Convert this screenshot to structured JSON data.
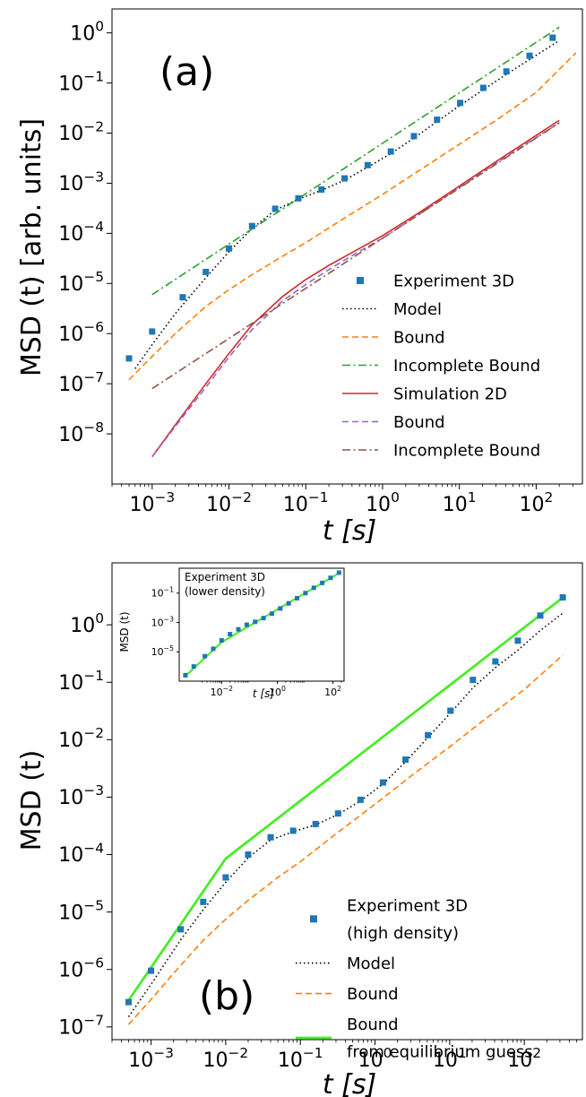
{
  "chart_data": [
    {
      "type": "line",
      "panel_label": "(a)",
      "xlabel": "t [s]",
      "ylabel": "MSD (t) [arb. units]",
      "xscale": "log",
      "yscale": "log",
      "xlim": [
        0.0003,
        400
      ],
      "ylim": [
        1e-09,
        3
      ],
      "xticks": [
        0.001,
        0.01,
        0.1,
        1,
        10,
        100
      ],
      "yticks": [
        1e-08,
        1e-07,
        1e-06,
        1e-05,
        0.0001,
        0.001,
        0.01,
        0.1,
        1
      ],
      "grid": false,
      "legend_position": "lower-right",
      "series": [
        {
          "name": "Experiment 3D",
          "style": "markers",
          "color": "#1f77b4",
          "x": [
            0.0005,
            0.001,
            0.0025,
            0.005,
            0.01,
            0.02,
            0.04,
            0.08,
            0.16,
            0.32,
            0.64,
            1.28,
            2.56,
            5.12,
            10.24,
            20.48,
            40.96,
            81.92,
            163.84
          ],
          "y": [
            3.2e-07,
            1.1e-06,
            5.3e-06,
            1.7e-05,
            5e-05,
            0.00014,
            0.00031,
            0.0005,
            0.00075,
            0.00125,
            0.0023,
            0.0043,
            0.0087,
            0.0185,
            0.04,
            0.08,
            0.17,
            0.35,
            0.8
          ]
        },
        {
          "name": "Model",
          "style": "dotted",
          "color": "#000000",
          "x": [
            0.0006,
            0.001,
            0.002,
            0.005,
            0.01,
            0.02,
            0.04,
            0.08,
            0.16,
            0.32,
            0.64,
            1.28,
            2.56,
            5.12,
            10.24,
            40.96,
            200
          ],
          "y": [
            2e-07,
            6e-07,
            2.5e-06,
            1.3e-05,
            4.3e-05,
            0.000125,
            0.00029,
            0.00048,
            0.00072,
            0.00115,
            0.0021,
            0.0039,
            0.008,
            0.017,
            0.036,
            0.15,
            0.7
          ]
        },
        {
          "name": "Bound",
          "style": "dashed",
          "color": "#ff7f0e",
          "x": [
            0.0005,
            0.001,
            0.002,
            0.005,
            0.01,
            0.02,
            0.05,
            0.1,
            0.3,
            1,
            3,
            10,
            30,
            100,
            330
          ],
          "y": [
            1.2e-07,
            3.5e-07,
            1e-06,
            3.5e-06,
            7.5e-06,
            1.5e-05,
            3.5e-05,
            6.5e-05,
            0.00019,
            0.0006,
            0.0018,
            0.006,
            0.018,
            0.065,
            0.4
          ]
        },
        {
          "name": "Incomplete Bound",
          "style": "dashdot",
          "color": "#2ca02c",
          "x": [
            0.001,
            200
          ],
          "y": [
            6e-06,
            1.3
          ]
        },
        {
          "name": "Simulation 2D",
          "style": "solid",
          "color": "#d62728",
          "x": [
            0.001,
            0.002,
            0.005,
            0.01,
            0.02,
            0.05,
            0.1,
            0.2,
            0.5,
            1,
            3,
            10,
            30,
            100,
            200
          ],
          "y": [
            3.5e-09,
            1.5e-08,
            1e-07,
            4e-07,
            1.5e-06,
            5.5e-06,
            1.2e-05,
            2.3e-05,
            5e-05,
            9e-05,
            0.00026,
            0.00088,
            0.0027,
            0.009,
            0.018
          ]
        },
        {
          "name": "Bound",
          "style": "dashed",
          "color": "#9467bd",
          "x": [
            0.001,
            0.002,
            0.005,
            0.01,
            0.02,
            0.05,
            0.1,
            0.2,
            0.5,
            1,
            3,
            10,
            30,
            100,
            200
          ],
          "y": [
            3.5e-09,
            1.4e-08,
            8.5e-08,
            3.4e-07,
            1.2e-06,
            4.5e-06,
            9.5e-06,
            1.9e-05,
            4.4e-05,
            8e-05,
            0.00024,
            0.00082,
            0.0025,
            0.0082,
            0.016
          ]
        },
        {
          "name": "Incomplete Bound",
          "style": "dashdot",
          "color": "#8c564b",
          "x": [
            0.001,
            200
          ],
          "y": [
            8e-08,
            0.016
          ]
        }
      ]
    },
    {
      "type": "line",
      "panel_label": "(b)",
      "xlabel": "t [s]",
      "ylabel": "MSD (t)",
      "xscale": "log",
      "yscale": "log",
      "xlim": [
        0.0003,
        600
      ],
      "ylim": [
        6e-08,
        12
      ],
      "xticks": [
        0.001,
        0.01,
        0.1,
        1,
        10,
        100
      ],
      "yticks": [
        1e-07,
        1e-06,
        1e-05,
        0.0001,
        0.001,
        0.01,
        0.1,
        1
      ],
      "grid": false,
      "legend_position": "lower-right",
      "series": [
        {
          "name": "Experiment 3D\n(high density)",
          "style": "markers",
          "color": "#1f77b4",
          "x": [
            0.0005,
            0.001,
            0.0025,
            0.005,
            0.01,
            0.02,
            0.04,
            0.08,
            0.16,
            0.32,
            0.64,
            1.28,
            2.56,
            5.12,
            10.24,
            20.48,
            40.96,
            81.92,
            163.84,
            327.68
          ],
          "y": [
            2.7e-07,
            9.5e-07,
            5e-06,
            1.5e-05,
            4e-05,
            0.0001,
            0.0002,
            0.00026,
            0.00034,
            0.00052,
            0.0009,
            0.0018,
            0.0045,
            0.012,
            0.032,
            0.11,
            0.23,
            0.53,
            1.45,
            3.0
          ]
        },
        {
          "name": "Model",
          "style": "dotted",
          "color": "#000000",
          "x": [
            0.0005,
            0.001,
            0.0025,
            0.005,
            0.01,
            0.02,
            0.04,
            0.08,
            0.16,
            0.32,
            0.64,
            1.28,
            2.56,
            5.12,
            10.24,
            20.48,
            40.96,
            81.92,
            163.84,
            327.68
          ],
          "y": [
            1.5e-07,
            5.5e-07,
            3.3e-06,
            1.1e-05,
            3.3e-05,
            8.8e-05,
            0.00018,
            0.00025,
            0.00033,
            0.0005,
            0.00086,
            0.0017,
            0.0041,
            0.011,
            0.029,
            0.08,
            0.18,
            0.36,
            0.8,
            1.6
          ]
        },
        {
          "name": "Bound",
          "style": "dashed",
          "color": "#ff7f0e",
          "x": [
            0.0005,
            0.001,
            0.002,
            0.005,
            0.01,
            0.02,
            0.05,
            0.1,
            0.3,
            1,
            3,
            10,
            30,
            100,
            330
          ],
          "y": [
            1.1e-07,
            3e-07,
            8.5e-07,
            3.2e-06,
            7.5e-06,
            1.6e-05,
            4e-05,
            7.5e-05,
            0.00023,
            0.00075,
            0.0023,
            0.0075,
            0.023,
            0.075,
            0.3
          ]
        },
        {
          "name": "Bound\nfrom equilibrium guess",
          "style": "solid",
          "color": "#44ee22",
          "x": [
            0.0005,
            0.01,
            330
          ],
          "y": [
            2.9e-07,
            8.5e-05,
            3.0
          ]
        }
      ]
    },
    {
      "type": "scatter",
      "inset_of": "(b)",
      "title": "Experiment 3D\n(lower density)",
      "xlabel": "t [s]",
      "ylabel": "MSD (t)",
      "xscale": "log",
      "yscale": "log",
      "xlim": [
        0.0003,
        250
      ],
      "ylim": [
        1e-07,
        5
      ],
      "xticks": [
        0.01,
        1,
        100
      ],
      "yticks": [
        1e-05,
        0.001,
        0.1
      ],
      "series": [
        {
          "name": "Experiment 3D (lower density)",
          "style": "markers",
          "color": "#1f77b4",
          "x": [
            0.0005,
            0.001,
            0.0025,
            0.005,
            0.01,
            0.02,
            0.04,
            0.08,
            0.16,
            0.32,
            0.64,
            1.28,
            2.56,
            5.12,
            10.24,
            20.48,
            40.96,
            81.92,
            163.84
          ],
          "y": [
            2.5e-07,
            1e-06,
            5e-06,
            1.6e-05,
            6e-05,
            0.00016,
            0.00034,
            0.0007,
            0.0011,
            0.002,
            0.004,
            0.009,
            0.02,
            0.045,
            0.1,
            0.23,
            0.5,
            1.1,
            2.5
          ]
        },
        {
          "name": "",
          "style": "solid",
          "color": "#44ee22",
          "x": [
            0.0005,
            0.01,
            163.84
          ],
          "y": [
            2.2e-07,
            4.5e-05,
            2.3
          ]
        }
      ]
    }
  ]
}
